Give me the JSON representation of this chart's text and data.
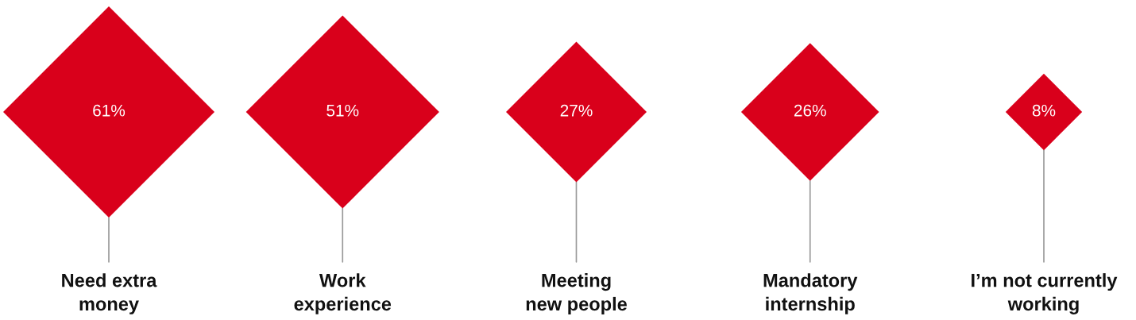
{
  "chart_data": {
    "type": "other",
    "categories": [
      "Need extra\nmoney",
      "Work\nexperience",
      "Meeting\nnew people",
      "Mandatory\ninternship",
      "I’m not currently\nworking"
    ],
    "values": [
      61,
      51,
      27,
      26,
      8
    ],
    "value_labels": [
      "61%",
      "51%",
      "27%",
      "26%",
      "8%"
    ],
    "color": "#d9001b"
  }
}
